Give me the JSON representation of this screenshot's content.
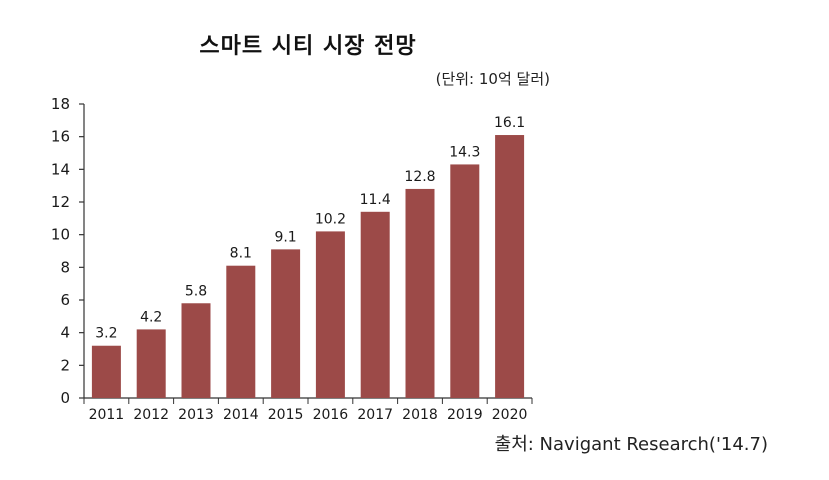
{
  "chart_data": {
    "type": "bar",
    "title": "스마트 시티 시장 전망",
    "unit_label": "(단위: 10억 달러)",
    "source": "출처: Navigant Research('14.7)",
    "categories": [
      "2011",
      "2012",
      "2013",
      "2014",
      "2015",
      "2016",
      "2017",
      "2018",
      "2019",
      "2020"
    ],
    "values": [
      3.2,
      4.2,
      5.8,
      8.1,
      9.1,
      10.2,
      11.4,
      12.8,
      14.3,
      16.1
    ],
    "value_labels": [
      "3.2",
      "4.2",
      "5.8",
      "8.1",
      "9.1",
      "10.2",
      "11.4",
      "12.8",
      "14.3",
      "16.1"
    ],
    "ylim": [
      0,
      18
    ],
    "yticks": [
      0,
      2,
      4,
      6,
      8,
      10,
      12,
      14,
      16,
      18
    ],
    "xlabel": "",
    "ylabel": "",
    "grid": false,
    "bar_color": "#9c4a48",
    "axis_color": "#333333"
  }
}
